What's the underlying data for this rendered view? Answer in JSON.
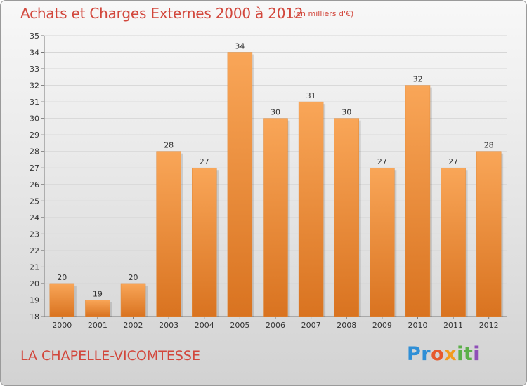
{
  "header": {
    "title": "Achats et Charges Externes 2000 à 2012",
    "unit": "(en milliers d'€)"
  },
  "footer": {
    "commune": "LA CHAPELLE-VICOMTESSE",
    "logo_letters": [
      {
        "char": "P",
        "color": "#2f8fd6"
      },
      {
        "char": "r",
        "color": "#2f8fd6"
      },
      {
        "char": "o",
        "color": "#e65a2e"
      },
      {
        "char": "x",
        "color": "#f29b1e"
      },
      {
        "char": "i",
        "color": "#5cb04a"
      },
      {
        "char": "t",
        "color": "#5cb04a"
      },
      {
        "char": "i",
        "color": "#8f4fb8"
      }
    ]
  },
  "colors": {
    "bar_light": "#f9a658",
    "bar_dark": "#d97320",
    "title": "#d2473c"
  },
  "chart_data": {
    "type": "bar",
    "categories": [
      "2000",
      "2001",
      "2002",
      "2003",
      "2004",
      "2005",
      "2006",
      "2007",
      "2008",
      "2009",
      "2010",
      "2011",
      "2012"
    ],
    "values": [
      20,
      19,
      20,
      28,
      27,
      34,
      30,
      31,
      30,
      27,
      32,
      27,
      28
    ],
    "title": "Achats et Charges Externes 2000 à 2012",
    "xlabel": "",
    "ylabel": "",
    "ylim": [
      18,
      35
    ],
    "yticks": [
      18,
      19,
      20,
      21,
      22,
      23,
      24,
      25,
      26,
      27,
      28,
      29,
      30,
      31,
      32,
      33,
      34,
      35
    ],
    "grid": true,
    "legend": "none"
  }
}
